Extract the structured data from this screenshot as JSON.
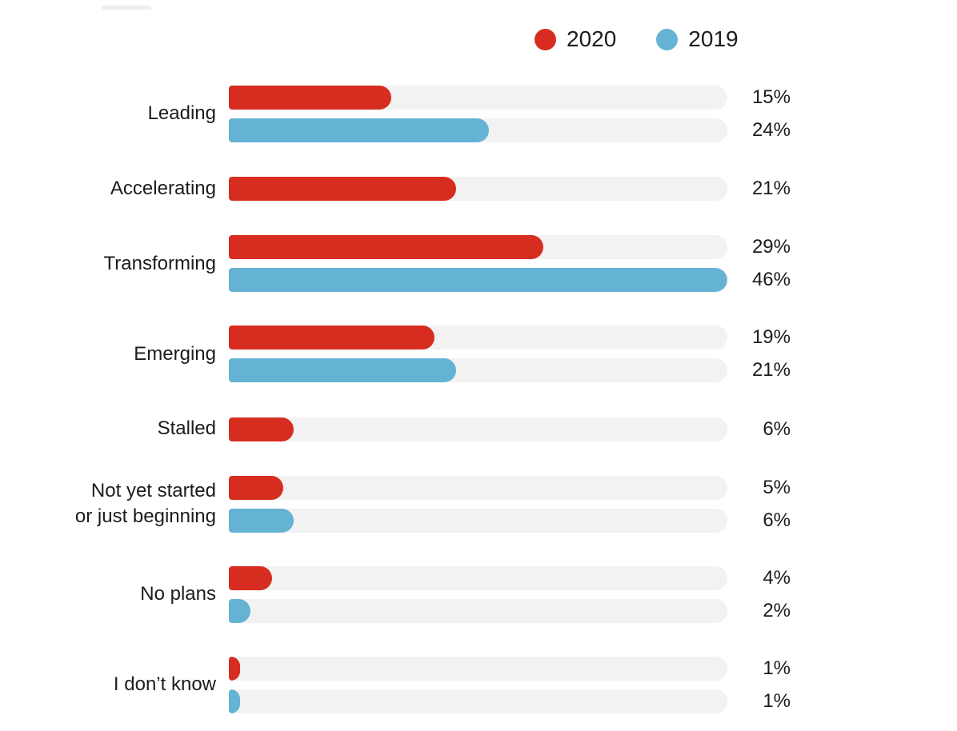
{
  "colors": {
    "red_2020": "#d62d20",
    "blue_2019": "#64b3d4",
    "track": "#f2f2f2",
    "text": "#1c1c1c"
  },
  "legend": {
    "items": [
      {
        "label": "2020",
        "color": "#d62d20"
      },
      {
        "label": "2019",
        "color": "#64b3d4"
      }
    ]
  },
  "chart_data": {
    "type": "bar",
    "orientation": "horizontal",
    "title": "",
    "categories": [
      "Leading",
      "Accelerating",
      "Transforming",
      "Emerging",
      "Stalled",
      "Not yet started or just beginning",
      "No plans",
      "I don’t know"
    ],
    "series": [
      {
        "name": "2020",
        "color": "#d62d20",
        "values": [
          15,
          21,
          29,
          19,
          6,
          5,
          4,
          1
        ]
      },
      {
        "name": "2019",
        "color": "#64b3d4",
        "values": [
          24,
          null,
          46,
          21,
          null,
          6,
          2,
          1
        ]
      }
    ],
    "value_suffix": "%",
    "xlim": [
      0,
      46
    ],
    "grid": false,
    "legend_position": "top-right",
    "value_labels": "outside-right"
  },
  "rows": [
    {
      "label_lines": [
        "Leading"
      ],
      "bars": [
        {
          "year": "2020",
          "value": 15,
          "display": "15%"
        },
        {
          "year": "2019",
          "value": 24,
          "display": "24%"
        }
      ]
    },
    {
      "label_lines": [
        "Accelerating"
      ],
      "bars": [
        {
          "year": "2020",
          "value": 21,
          "display": "21%"
        }
      ]
    },
    {
      "label_lines": [
        "Transforming"
      ],
      "bars": [
        {
          "year": "2020",
          "value": 29,
          "display": "29%"
        },
        {
          "year": "2019",
          "value": 46,
          "display": "46%"
        }
      ]
    },
    {
      "label_lines": [
        "Emerging"
      ],
      "bars": [
        {
          "year": "2020",
          "value": 19,
          "display": "19%"
        },
        {
          "year": "2019",
          "value": 21,
          "display": "21%"
        }
      ]
    },
    {
      "label_lines": [
        "Stalled"
      ],
      "bars": [
        {
          "year": "2020",
          "value": 6,
          "display": "6%"
        }
      ]
    },
    {
      "label_lines": [
        "Not yet started",
        "or just beginning"
      ],
      "bars": [
        {
          "year": "2020",
          "value": 5,
          "display": "5%"
        },
        {
          "year": "2019",
          "value": 6,
          "display": "6%"
        }
      ]
    },
    {
      "label_lines": [
        "No plans"
      ],
      "bars": [
        {
          "year": "2020",
          "value": 4,
          "display": "4%"
        },
        {
          "year": "2019",
          "value": 2,
          "display": "2%"
        }
      ]
    },
    {
      "label_lines": [
        "I don’t know"
      ],
      "bars": [
        {
          "year": "2020",
          "value": 1,
          "display": "1%"
        },
        {
          "year": "2019",
          "value": 1,
          "display": "1%"
        }
      ]
    }
  ]
}
